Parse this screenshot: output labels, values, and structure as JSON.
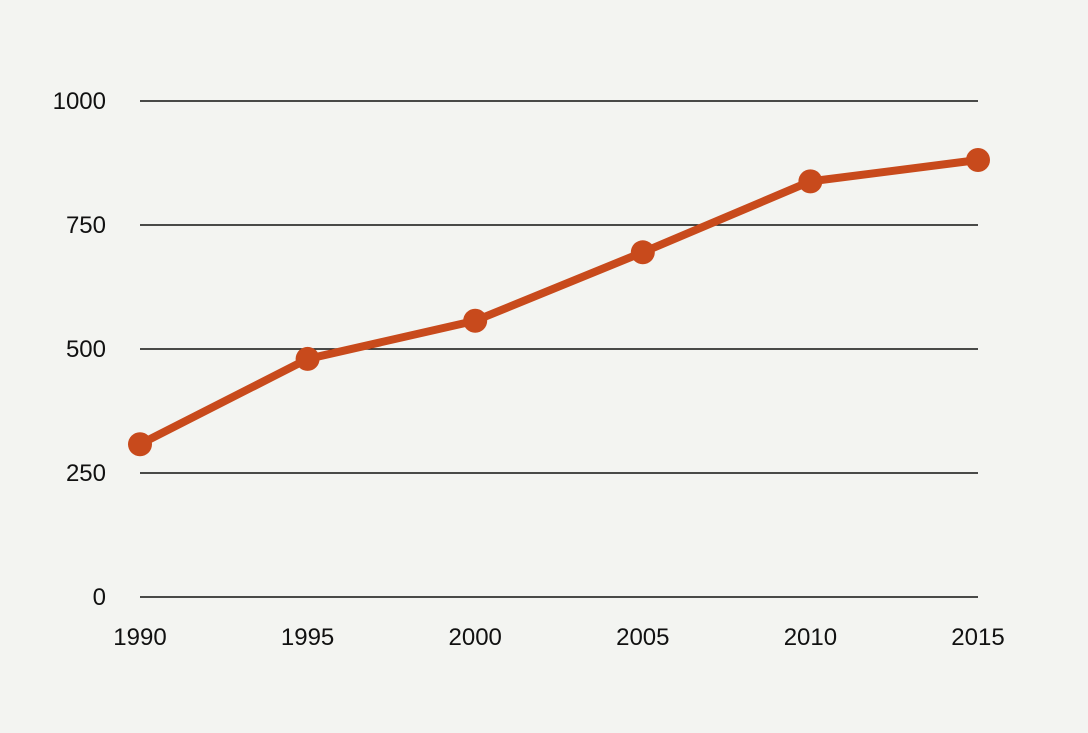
{
  "colors": {
    "background": "#f3f4f1",
    "series": "#c84a1c",
    "grid": "#111111"
  },
  "chart_data": {
    "type": "line",
    "title": "",
    "xlabel": "",
    "ylabel": "",
    "x": [
      1990,
      1995,
      2000,
      2005,
      2010,
      2015
    ],
    "x_tick_labels": [
      "1990",
      "1995",
      "2000",
      "2005",
      "2010",
      "2015"
    ],
    "y_tick_values": [
      0,
      250,
      500,
      750,
      1000
    ],
    "y_tick_labels": [
      "0",
      "250",
      "500",
      "750",
      "1000"
    ],
    "ylim": [
      0,
      1000
    ],
    "xlim": [
      1990,
      2015
    ],
    "grid": "horizontal",
    "legend": "none",
    "series": [
      {
        "values": [
          308,
          480,
          557,
          695,
          838,
          881
        ]
      }
    ]
  }
}
